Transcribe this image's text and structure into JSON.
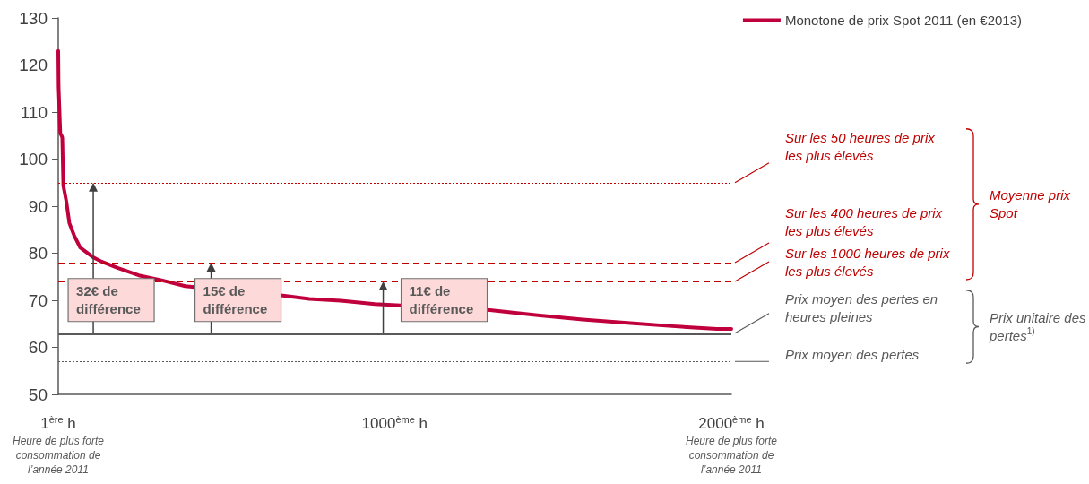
{
  "chart_data": {
    "type": "line",
    "legend": "top right",
    "grid": false,
    "marker": "none",
    "line_style": "solid",
    "xlim": [
      1,
      2000
    ],
    "xticks": [
      {
        "value": 1,
        "label": "1$^{ère}$ h"
      },
      {
        "value": 1000,
        "label": "1000$^{ème}$ h"
      },
      {
        "value": 2000,
        "label": "2000$^{ème}$ h"
      }
    ],
    "ylim": [
      50,
      130
    ],
    "yticks": [
      50,
      60,
      70,
      80,
      90,
      100,
      110,
      120,
      130
    ],
    "series": [
      {
        "name": "Monotone de prix Spot 2011 (en €2013)",
        "color": "#c0003c",
        "x": [
          1,
          2,
          7,
          12,
          13,
          16,
          25,
          34,
          48,
          66,
          103,
          130,
          177,
          240,
          305,
          378,
          668,
          747,
          840,
          941,
          1283,
          1425,
          1558,
          1691,
          1824,
          1957,
          2000
        ],
        "values": [
          123,
          115.4,
          105.5,
          104.8,
          104.5,
          94.4,
          91,
          86.4,
          83.8,
          81.2,
          79.2,
          78.2,
          76.9,
          75.3,
          74.3,
          73,
          71,
          70.3,
          69.9,
          69.2,
          67.9,
          66.8,
          65.9,
          65.2,
          64.5,
          63.9,
          63.9
        ]
      }
    ],
    "ref_lines": [
      {
        "axis": "y",
        "value": 95,
        "label": "Sur les 50 heures de prix les plus élevés",
        "color": "#c00000",
        "line_style": "dotted"
      },
      {
        "axis": "y",
        "value": 78,
        "label": "Sur les 400 heures de prix les plus élevés",
        "color": "#c00000",
        "line_style": "dashed"
      },
      {
        "axis": "y",
        "value": 74,
        "label": "Sur les 1000 heures de prix les plus élevés",
        "color": "#c00000",
        "line_style": "dashed"
      },
      {
        "axis": "y",
        "value": 63,
        "label": "Prix moyen des pertes en heures pleines",
        "color": "#595959",
        "line_style": "solid"
      },
      {
        "axis": "y",
        "value": 57,
        "label": "Prix moyen des pertes",
        "color": "#595959",
        "line_style": "dotted"
      }
    ],
    "annotations": [
      "Moyenne prix Spot",
      "Prix unitaire des pertes$^{1)}$",
      "Heure de plus forte consommation de l’année 2011",
      "Heure de plus forte consommation de l’année 2011",
      {
        "text": "32€ de différence",
        "x": 105,
        "y": 63
      },
      {
        "text": "15€ de différence",
        "x": 455,
        "y": 63
      },
      {
        "text": "11€ de différence",
        "x": 966,
        "y": 63
      }
    ]
  }
}
